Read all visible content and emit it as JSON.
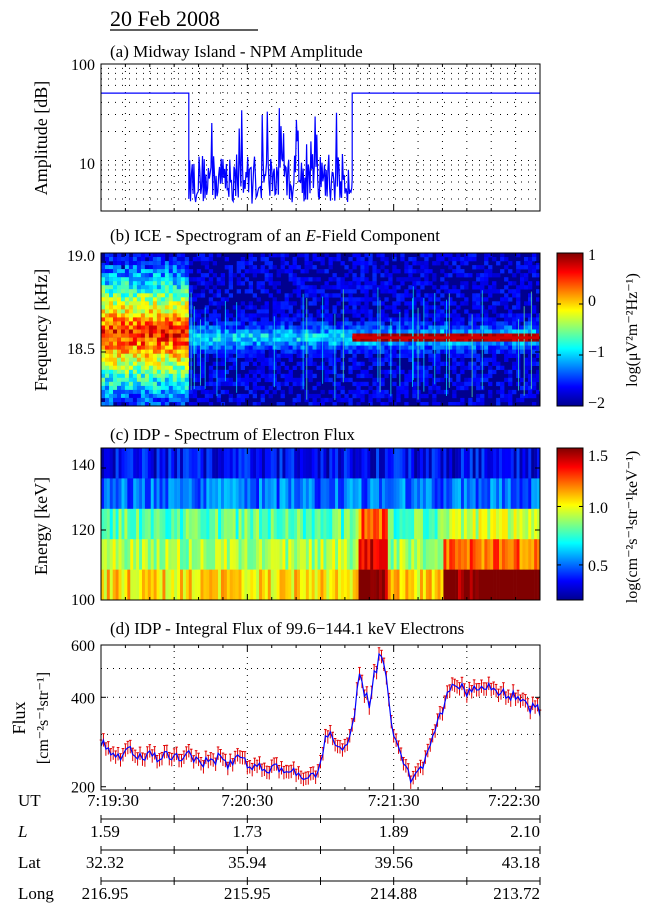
{
  "header": {
    "date": "20 Feb 2008"
  },
  "colors": {
    "line_blue": "#0000ff",
    "flux_red": "#e00000",
    "axis": "#000000"
  },
  "chart_data": [
    {
      "id": "a",
      "type": "line",
      "title": "(a) Midway Island - NPM Amplitude",
      "ylabel": "Amplitude [dB]",
      "yscale": "log",
      "ylim": [
        3,
        100
      ],
      "ytick_labels": [
        "100",
        "10"
      ],
      "xlim": [
        0,
        180
      ],
      "grid": true,
      "series": [
        {
          "segments": [
            {
              "t": [
                0,
                36
              ],
              "mean": 50,
              "noise": false
            },
            {
              "t": [
                36,
                103
              ],
              "mean": 6.5,
              "noise": true,
              "min": 3.2,
              "max": 35
            },
            {
              "t": [
                103,
                180
              ],
              "mean": 50,
              "noise": false
            }
          ]
        }
      ]
    },
    {
      "id": "b",
      "type": "heatmap",
      "title": "(b) ICE - Spectrogram of an E-Field Component",
      "title_parts": [
        "(b) ICE - Spectrogram of an ",
        "E",
        "-Field Component"
      ],
      "ylabel": "Frequency [kHz]",
      "ylim": [
        18.2,
        19.05
      ],
      "ytick_labels": [
        "19.0",
        "18.5"
      ],
      "colorbar": {
        "range": [
          -2,
          1
        ],
        "ticks": [
          "1",
          "0",
          "−1",
          "−2"
        ],
        "label": "log(μV²m⁻²Hz⁻¹)"
      },
      "features": [
        {
          "kind": "band",
          "t": [
            0,
            36
          ],
          "freq_center": 18.6,
          "level": 0.3
        },
        {
          "kind": "line",
          "t": [
            103,
            180
          ],
          "freq": 18.58,
          "level": 0.8
        },
        {
          "kind": "background_line",
          "t": [
            36,
            180
          ],
          "freq": 18.58,
          "level": -0.8
        }
      ]
    },
    {
      "id": "c",
      "type": "heatmap",
      "title": "(c) IDP - Spectrum of Electron Flux",
      "ylabel": "Energy [keV]",
      "ylim": [
        99.6,
        144.1
      ],
      "ytick_labels": [
        "140",
        "120",
        "100"
      ],
      "energy_bins": [
        144.1,
        135.0,
        126.0,
        117.0,
        108.0,
        99.6
      ],
      "colorbar": {
        "range": [
          0.2,
          1.5
        ],
        "ticks": [
          "1.5",
          "1.0",
          "0.5"
        ],
        "label": "log(cm⁻²s⁻¹str⁻¹keV⁻¹)"
      },
      "bin_levels": [
        0.35,
        0.5,
        0.8,
        0.9,
        1.05
      ]
    },
    {
      "id": "d",
      "type": "line",
      "title": "(d) IDP - Integral Flux of 99.6−144.1 keV Electrons",
      "ylabel": "Flux",
      "ylabel2": "[cm⁻²s⁻¹str⁻¹]",
      "ylim": [
        195,
        600
      ],
      "yscale": "log",
      "ytick_labels": [
        "600",
        "400",
        "200"
      ],
      "ytick_values": [
        600,
        400,
        200
      ],
      "xlim": [
        0,
        180
      ],
      "series": [
        {
          "points": [
            [
              0,
              280
            ],
            [
              4,
              260
            ],
            [
              8,
              255
            ],
            [
              12,
              262
            ],
            [
              16,
              252
            ],
            [
              20,
              258
            ],
            [
              24,
              250
            ],
            [
              28,
              256
            ],
            [
              32,
              245
            ],
            [
              36,
              253
            ],
            [
              40,
              248
            ],
            [
              44,
              240
            ],
            [
              48,
              250
            ],
            [
              52,
              238
            ],
            [
              56,
              245
            ],
            [
              60,
              240
            ],
            [
              64,
              236
            ],
            [
              68,
              232
            ],
            [
              72,
              230
            ],
            [
              76,
              225
            ],
            [
              80,
              222
            ],
            [
              84,
              218
            ],
            [
              86,
              230
            ],
            [
              88,
              225
            ],
            [
              90,
              240
            ],
            [
              92,
              290
            ],
            [
              94,
              300
            ],
            [
              96,
              280
            ],
            [
              98,
              270
            ],
            [
              100,
              275
            ],
            [
              102,
              300
            ],
            [
              104,
              360
            ],
            [
              106,
              460
            ],
            [
              108,
              420
            ],
            [
              110,
              380
            ],
            [
              112,
              470
            ],
            [
              114,
              540
            ],
            [
              116,
              510
            ],
            [
              118,
              380
            ],
            [
              120,
              300
            ],
            [
              122,
              260
            ],
            [
              124,
              245
            ],
            [
              126,
              220
            ],
            [
              128,
              210
            ],
            [
              130,
              225
            ],
            [
              132,
              240
            ],
            [
              134,
              270
            ],
            [
              136,
              300
            ],
            [
              138,
              330
            ],
            [
              140,
              360
            ],
            [
              142,
              400
            ],
            [
              144,
              430
            ],
            [
              146,
              445
            ],
            [
              148,
              430
            ],
            [
              150,
              410
            ],
            [
              152,
              420
            ],
            [
              154,
              430
            ],
            [
              156,
              425
            ],
            [
              158,
              440
            ],
            [
              160,
              420
            ],
            [
              162,
              405
            ],
            [
              164,
              425
            ],
            [
              166,
              410
            ],
            [
              168,
              395
            ],
            [
              170,
              410
            ],
            [
              172,
              390
            ],
            [
              174,
              375
            ],
            [
              176,
              370
            ],
            [
              178,
              365
            ],
            [
              180,
              360
            ]
          ]
        }
      ]
    }
  ],
  "time_axis": {
    "rows": [
      {
        "label": "UT",
        "values": [
          "7:19:30",
          "7:20:30",
          "7:21:30",
          "7:22:30"
        ]
      },
      {
        "label": "L",
        "values": [
          "1.59",
          "1.73",
          "1.89",
          "2.10"
        ]
      },
      {
        "label": "Lat",
        "values": [
          "32.32",
          "35.94",
          "39.56",
          "43.18"
        ]
      },
      {
        "label": "Long",
        "values": [
          "216.95",
          "215.95",
          "214.88",
          "213.72"
        ]
      }
    ]
  }
}
